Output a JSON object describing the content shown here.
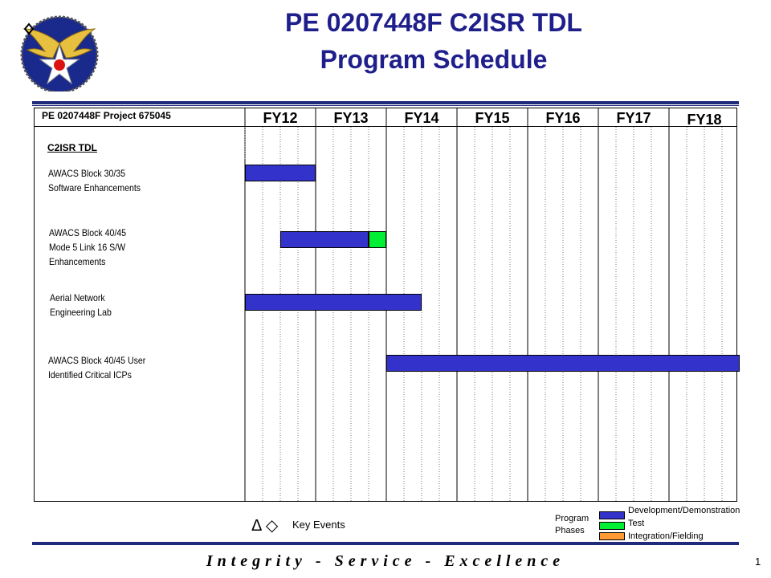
{
  "title": {
    "line1": "PE 0207448F C2ISR TDL",
    "line2": "Program Schedule"
  },
  "project_label": "PE 0207448F  Project 675045",
  "fiscal_years": [
    "FY12",
    "FY13",
    "FY14",
    "FY15",
    "FY16",
    "FY17",
    "FY18"
  ],
  "category": "C2ISR TDL",
  "tasks": [
    {
      "lines": [
        "AWACS Block 30/35",
        "Software Enhancements"
      ],
      "segments": [
        {
          "phase": "development",
          "start": 0,
          "end": 4
        }
      ]
    },
    {
      "lines": [
        "AWACS Block 40/45",
        "Mode 5 Link 16 S/W",
        "Enhancements"
      ],
      "segments": [
        {
          "phase": "development",
          "start": 2,
          "end": 7
        },
        {
          "phase": "test",
          "start": 7,
          "end": 8
        }
      ]
    },
    {
      "lines": [
        "Aerial Network",
        "Engineering Lab"
      ],
      "segments": [
        {
          "phase": "development",
          "start": 0,
          "end": 10
        }
      ]
    },
    {
      "lines": [
        "AWACS Block 40/45 User",
        "Identified Critical ICPs"
      ],
      "segments": [
        {
          "phase": "development",
          "start": 8,
          "end": 28
        }
      ]
    }
  ],
  "key_events": {
    "symbols": "Δ ◇",
    "label": "Key Events"
  },
  "legend": {
    "title": [
      "Program",
      "Phases"
    ],
    "items": [
      {
        "phase": "development",
        "label": "Development/Demonstration",
        "color": "#3333cc"
      },
      {
        "phase": "test",
        "label": "Test",
        "color": "#00ee33"
      },
      {
        "phase": "integration",
        "label": "Integration/Fielding",
        "color": "#ff9933"
      }
    ]
  },
  "motto": "Integrity - Service - Excellence",
  "page_number": "1",
  "colors": {
    "title": "#1f1f8c",
    "rule": "#1f2a7a"
  }
}
